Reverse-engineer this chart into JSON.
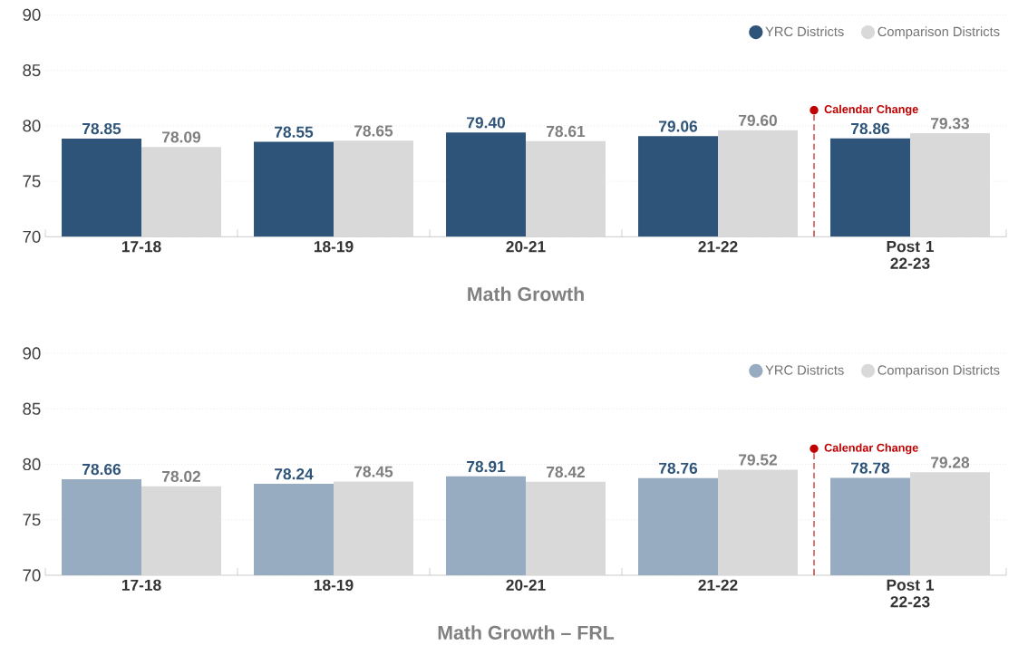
{
  "chart_data": [
    {
      "type": "bar",
      "title": "Math Growth",
      "categories": [
        "17-18",
        "18-19",
        "20-21",
        "21-22",
        "Post 1 22-23"
      ],
      "series": [
        {
          "name": "YRC Districts",
          "color": "#2e5479",
          "values": [
            78.85,
            78.55,
            79.4,
            79.06,
            78.86
          ],
          "value_labels": [
            "78.85",
            "78.55",
            "79.40",
            "79.06",
            "78.86"
          ]
        },
        {
          "name": "Comparison Districts",
          "color": "#d9d9d9",
          "values": [
            78.09,
            78.65,
            78.61,
            79.6,
            79.33
          ],
          "value_labels": [
            "78.09",
            "78.65",
            "78.61",
            "79.60",
            "79.33"
          ]
        }
      ],
      "ylim": [
        70,
        90
      ],
      "yticks": [
        70,
        75,
        80,
        85,
        90
      ],
      "grid": "y",
      "legend": "top right",
      "annotations": [
        "Calendar Change"
      ]
    },
    {
      "type": "bar",
      "title": "Math Growth – FRL",
      "categories": [
        "17-18",
        "18-19",
        "20-21",
        "21-22",
        "Post 1 22-23"
      ],
      "series": [
        {
          "name": "YRC Districts",
          "color": "#97abc1",
          "values": [
            78.66,
            78.24,
            78.91,
            78.76,
            78.78
          ],
          "value_labels": [
            "78.66",
            "78.24",
            "78.91",
            "78.76",
            "78.78"
          ]
        },
        {
          "name": "Comparison Districts",
          "color": "#d9d9d9",
          "values": [
            78.02,
            78.45,
            78.42,
            79.52,
            79.28
          ],
          "value_labels": [
            "78.02",
            "78.45",
            "78.42",
            "79.52",
            "79.28"
          ]
        }
      ],
      "ylim": [
        70,
        90
      ],
      "yticks": [
        70,
        75,
        80,
        85,
        90
      ],
      "grid": "y",
      "legend": "top right",
      "annotations": [
        "Calendar Change"
      ]
    }
  ]
}
